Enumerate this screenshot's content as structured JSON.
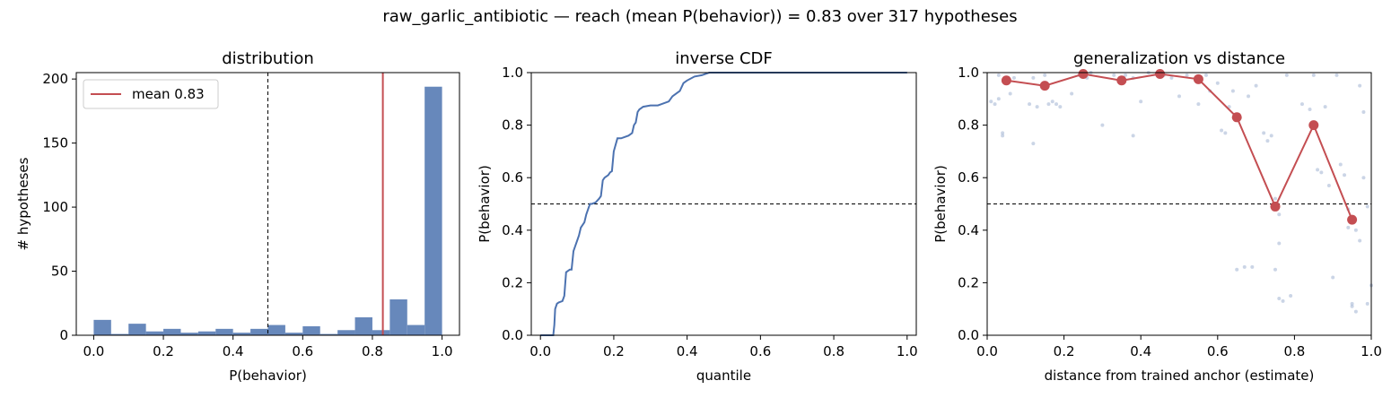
{
  "figure": {
    "suptitle": "raw_garlic_antibiotic  —  reach (mean P(behavior)) = 0.83  over 317 hypotheses"
  },
  "chart_data": [
    {
      "type": "bar",
      "title": "distribution",
      "xlabel": "P(behavior)",
      "ylabel": "# hypotheses",
      "xlim": [
        -0.05,
        1.05
      ],
      "ylim": [
        0,
        205
      ],
      "xticks": [
        "0.0",
        "0.2",
        "0.4",
        "0.6",
        "0.8",
        "1.0"
      ],
      "yticks": [
        "0",
        "50",
        "100",
        "150",
        "200"
      ],
      "bin_width": 0.05,
      "bin_left_edges": [
        0.0,
        0.05,
        0.1,
        0.15,
        0.2,
        0.25,
        0.3,
        0.35,
        0.4,
        0.45,
        0.5,
        0.55,
        0.6,
        0.65,
        0.7,
        0.75,
        0.8,
        0.85,
        0.9,
        0.95
      ],
      "counts": [
        12,
        1,
        9,
        3,
        5,
        2,
        3,
        5,
        2,
        5,
        8,
        2,
        7,
        1,
        4,
        14,
        4,
        28,
        8,
        194
      ],
      "threshold": 0.5,
      "mean": 0.83,
      "legend": {
        "label": "mean 0.83",
        "position": "upper-left"
      },
      "colors": {
        "bars": "#6788bb",
        "mean_line": "#c44e52"
      }
    },
    {
      "type": "line",
      "title": "inverse CDF",
      "xlabel": "quantile",
      "ylabel": "P(behavior)",
      "xlim": [
        -0.025,
        1.025
      ],
      "ylim": [
        0,
        1
      ],
      "xticks": [
        "0.0",
        "0.2",
        "0.4",
        "0.6",
        "0.8",
        "1.0"
      ],
      "yticks": [
        "0.0",
        "0.2",
        "0.4",
        "0.6",
        "0.8",
        "1.0"
      ],
      "threshold": 0.5,
      "x": [
        0.0,
        0.035,
        0.038,
        0.04,
        0.045,
        0.05,
        0.06,
        0.065,
        0.07,
        0.075,
        0.08,
        0.085,
        0.09,
        0.095,
        0.1,
        0.105,
        0.11,
        0.115,
        0.12,
        0.125,
        0.13,
        0.135,
        0.14,
        0.15,
        0.16,
        0.165,
        0.17,
        0.175,
        0.185,
        0.19,
        0.195,
        0.2,
        0.21,
        0.22,
        0.23,
        0.24,
        0.25,
        0.255,
        0.26,
        0.265,
        0.27,
        0.275,
        0.28,
        0.3,
        0.32,
        0.33,
        0.35,
        0.36,
        0.37,
        0.38,
        0.39,
        0.4,
        0.42,
        0.44,
        0.46,
        0.48,
        0.5,
        1.0
      ],
      "values": [
        0.0,
        0.0,
        0.04,
        0.1,
        0.12,
        0.125,
        0.13,
        0.15,
        0.24,
        0.245,
        0.25,
        0.25,
        0.32,
        0.34,
        0.36,
        0.38,
        0.41,
        0.42,
        0.43,
        0.46,
        0.48,
        0.5,
        0.5,
        0.505,
        0.52,
        0.53,
        0.59,
        0.6,
        0.61,
        0.62,
        0.625,
        0.7,
        0.75,
        0.75,
        0.755,
        0.76,
        0.77,
        0.8,
        0.81,
        0.85,
        0.86,
        0.865,
        0.87,
        0.875,
        0.875,
        0.88,
        0.89,
        0.91,
        0.92,
        0.93,
        0.96,
        0.97,
        0.985,
        0.99,
        1.0,
        1.0,
        1.0,
        1.0
      ],
      "colors": {
        "line": "#4c72b0"
      }
    },
    {
      "type": "scatter",
      "title": "generalization vs distance",
      "xlabel": "distance from trained anchor (estimate)",
      "ylabel": "P(behavior)",
      "xlim": [
        0,
        1
      ],
      "ylim": [
        0,
        1
      ],
      "xticks": [
        "0.0",
        "0.2",
        "0.4",
        "0.6",
        "0.8",
        "1.0"
      ],
      "yticks": [
        "0.0",
        "0.2",
        "0.4",
        "0.6",
        "0.8",
        "1.0"
      ],
      "threshold": 0.5,
      "binned_means": {
        "x": [
          0.05,
          0.15,
          0.25,
          0.35,
          0.45,
          0.55,
          0.65,
          0.75,
          0.85,
          0.95
        ],
        "values": [
          0.97,
          0.95,
          0.995,
          0.97,
          0.995,
          0.975,
          0.83,
          0.49,
          0.8,
          0.44
        ]
      },
      "points": [
        [
          0.01,
          0.89
        ],
        [
          0.02,
          0.88
        ],
        [
          0.03,
          0.9
        ],
        [
          0.04,
          0.76
        ],
        [
          0.04,
          0.77
        ],
        [
          0.06,
          0.92
        ],
        [
          0.03,
          0.99
        ],
        [
          0.07,
          0.98
        ],
        [
          0.11,
          0.88
        ],
        [
          0.12,
          0.73
        ],
        [
          0.13,
          0.87
        ],
        [
          0.16,
          0.88
        ],
        [
          0.17,
          0.89
        ],
        [
          0.18,
          0.88
        ],
        [
          0.19,
          0.87
        ],
        [
          0.12,
          0.98
        ],
        [
          0.15,
          0.99
        ],
        [
          0.22,
          0.92
        ],
        [
          0.24,
          0.99
        ],
        [
          0.27,
          1.0
        ],
        [
          0.3,
          0.8
        ],
        [
          0.26,
          0.98
        ],
        [
          0.33,
          0.99
        ],
        [
          0.36,
          0.99
        ],
        [
          0.38,
          0.76
        ],
        [
          0.4,
          0.89
        ],
        [
          0.42,
          1.0
        ],
        [
          0.38,
          0.98
        ],
        [
          0.46,
          0.99
        ],
        [
          0.48,
          0.98
        ],
        [
          0.5,
          0.91
        ],
        [
          0.52,
          0.99
        ],
        [
          0.55,
          0.88
        ],
        [
          0.57,
          0.99
        ],
        [
          0.58,
          0.93
        ],
        [
          0.6,
          0.96
        ],
        [
          0.61,
          0.78
        ],
        [
          0.62,
          0.77
        ],
        [
          0.63,
          0.87
        ],
        [
          0.64,
          0.93
        ],
        [
          0.65,
          0.25
        ],
        [
          0.67,
          0.26
        ],
        [
          0.69,
          0.26
        ],
        [
          0.68,
          0.91
        ],
        [
          0.7,
          0.95
        ],
        [
          0.72,
          0.77
        ],
        [
          0.73,
          0.74
        ],
        [
          0.74,
          0.76
        ],
        [
          0.75,
          0.52
        ],
        [
          0.76,
          0.46
        ],
        [
          0.76,
          0.14
        ],
        [
          0.77,
          0.13
        ],
        [
          0.78,
          0.99
        ],
        [
          0.79,
          0.15
        ],
        [
          0.75,
          0.25
        ],
        [
          0.76,
          0.35
        ],
        [
          0.82,
          0.88
        ],
        [
          0.84,
          0.86
        ],
        [
          0.85,
          0.99
        ],
        [
          0.86,
          0.63
        ],
        [
          0.87,
          0.62
        ],
        [
          0.88,
          0.87
        ],
        [
          0.89,
          0.57
        ],
        [
          0.9,
          0.22
        ],
        [
          0.91,
          0.99
        ],
        [
          0.92,
          0.65
        ],
        [
          0.93,
          0.61
        ],
        [
          0.94,
          0.48
        ],
        [
          0.94,
          0.41
        ],
        [
          0.95,
          0.12
        ],
        [
          0.95,
          0.11
        ],
        [
          0.96,
          0.09
        ],
        [
          0.96,
          0.4
        ],
        [
          0.97,
          0.36
        ],
        [
          0.97,
          0.95
        ],
        [
          0.98,
          0.85
        ],
        [
          0.99,
          0.49
        ],
        [
          1.0,
          0.19
        ],
        [
          0.98,
          0.6
        ],
        [
          0.99,
          0.12
        ]
      ],
      "colors": {
        "points": "#a9b9d6",
        "binned_line": "#c44e52"
      }
    }
  ]
}
